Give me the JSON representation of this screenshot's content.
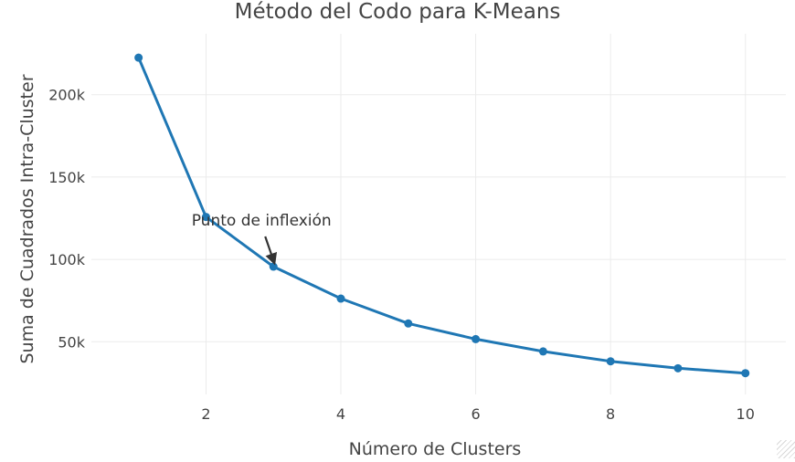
{
  "chart_data": {
    "type": "line",
    "title": "Método del Codo para K-Means",
    "xlabel": "Número de Clusters",
    "ylabel": "Suma de Cuadrados Intra-Cluster",
    "x": [
      1,
      2,
      3,
      4,
      5,
      6,
      7,
      8,
      9,
      10
    ],
    "series": [
      {
        "values": [
          222500,
          125800,
          95600,
          76200,
          61100,
          51600,
          44100,
          38100,
          33900,
          30900
        ],
        "color": "#1f77b4"
      }
    ],
    "xlim": [
      0.3,
      10.6
    ],
    "ylim": [
      18000,
      237000
    ],
    "x_ticks": [
      2,
      4,
      6,
      8,
      10
    ],
    "x_tick_labels": [
      "2",
      "4",
      "6",
      "8",
      "10"
    ],
    "y_ticks": [
      50000,
      100000,
      150000,
      200000
    ],
    "y_tick_labels": [
      "50k",
      "100k",
      "150k",
      "200k"
    ],
    "grid": true,
    "legend": "none",
    "annotations": [
      {
        "text": "Punto de inflexión",
        "x": 3,
        "y": 95600,
        "arrow": true
      }
    ]
  },
  "colors": {
    "series": "#1f77b4",
    "grid": "#ebebeb",
    "text": "#444444",
    "background": "#ffffff"
  }
}
